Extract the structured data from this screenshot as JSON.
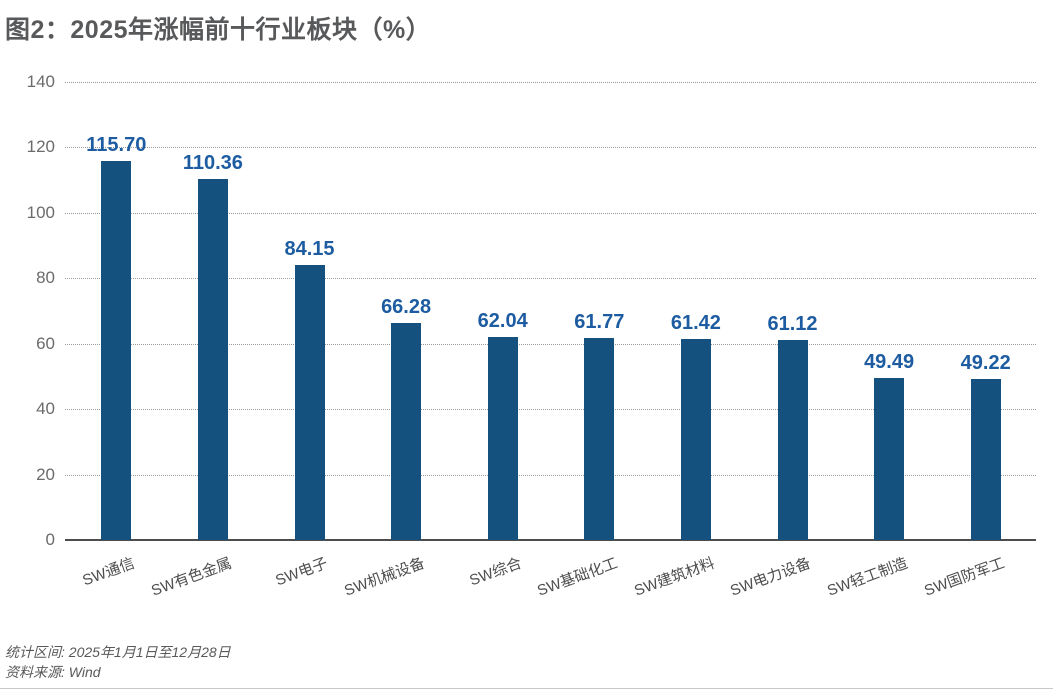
{
  "title": "图2：2025年涨幅前十行业板块（%）",
  "footer": {
    "period": "统计区间: 2025年1月1日至12月28日",
    "source": "资料来源: Wind"
  },
  "colors": {
    "bar": "#15517e",
    "value_label": "#1d5ca1",
    "title_text": "#58595b",
    "axis_tick_text": "#6b6b6b",
    "category_text": "#4d4d4d",
    "gridline": "#9a9a9a",
    "axis_line": "#4d4d4d",
    "footer_text": "#595959"
  },
  "chart_data": {
    "type": "bar",
    "title": "图2：2025年涨幅前十行业板块（%）",
    "categories": [
      "SW通信",
      "SW有色金属",
      "SW电子",
      "SW机械设备",
      "SW综合",
      "SW基础化工",
      "SW建筑材料",
      "SW电力设备",
      "SW轻工制造",
      "SW国防军工"
    ],
    "values": [
      115.7,
      110.36,
      84.15,
      66.28,
      62.04,
      61.77,
      61.42,
      61.12,
      49.49,
      49.22
    ],
    "value_labels": [
      "115.70",
      "110.36",
      "84.15",
      "66.28",
      "62.04",
      "61.77",
      "61.42",
      "61.12",
      "49.49",
      "49.22"
    ],
    "xlabel": "",
    "ylabel": "",
    "ylim": [
      0,
      140
    ],
    "yticks": [
      0,
      20,
      40,
      60,
      80,
      100,
      120,
      140
    ],
    "grid": "horizontal-dotted",
    "legend": "none",
    "bar_color": "#15517e",
    "value_label_color": "#1d5ca1"
  }
}
